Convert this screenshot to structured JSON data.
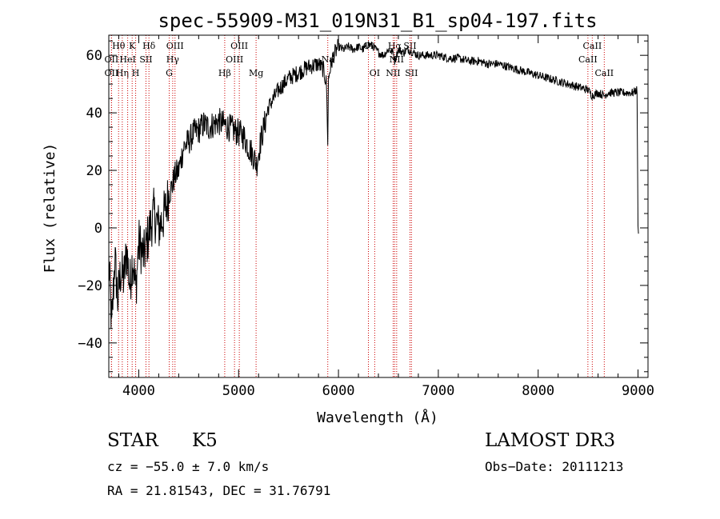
{
  "chart_data": {
    "type": "line",
    "title": "spec-55909-M31_019N31_B1_sp04-197.fits",
    "xlabel": "Wavelength (Å)",
    "ylabel": "Flux (relative)",
    "xlim": [
      3700,
      9100
    ],
    "ylim": [
      -52,
      67
    ],
    "xticks": [
      4000,
      5000,
      6000,
      7000,
      8000,
      9000
    ],
    "yticks": [
      -40,
      -20,
      0,
      20,
      40,
      60
    ],
    "series": [
      {
        "name": "spectrum",
        "x": [
          3700,
          3730,
          3760,
          3790,
          3820,
          3850,
          3880,
          3910,
          3940,
          3970,
          4000,
          4050,
          4100,
          4150,
          4200,
          4250,
          4280,
          4300,
          4330,
          4360,
          4400,
          4450,
          4500,
          4550,
          4600,
          4650,
          4700,
          4750,
          4800,
          4850,
          4900,
          4950,
          5000,
          5050,
          5100,
          5150,
          5180,
          5220,
          5300,
          5400,
          5500,
          5600,
          5700,
          5800,
          5850,
          5880,
          5893,
          5900,
          5920,
          5950,
          6000,
          6050,
          6100,
          6150,
          6200,
          6250,
          6300,
          6350,
          6400,
          6450,
          6500,
          6550,
          6563,
          6600,
          6650,
          6700,
          6750,
          6800,
          6900,
          7000,
          7100,
          7200,
          7300,
          7400,
          7500,
          7600,
          7700,
          7800,
          7900,
          8000,
          8100,
          8200,
          8300,
          8400,
          8500,
          8540,
          8600,
          8660,
          8700,
          8800,
          8900,
          8950,
          8990,
          9000,
          9005
        ],
        "values": [
          -12,
          -35,
          -10,
          -25,
          -15,
          -18,
          -8,
          -20,
          -10,
          -22,
          -5,
          -10,
          -2,
          5,
          0,
          4,
          8,
          12,
          14,
          18,
          20,
          28,
          30,
          33,
          34,
          36,
          35,
          36,
          37,
          36,
          35,
          34,
          33,
          32,
          28,
          25,
          22,
          30,
          42,
          48,
          52,
          54,
          56,
          57,
          55,
          50,
          30,
          52,
          56,
          60,
          63,
          62,
          63,
          62,
          63,
          62,
          64,
          63,
          61,
          60,
          62,
          61,
          58,
          62,
          61,
          62,
          61,
          60,
          60,
          60,
          59,
          59,
          58,
          58,
          57,
          57,
          56,
          55,
          54,
          53,
          52,
          51,
          50,
          49,
          48,
          46,
          47,
          46,
          47,
          47,
          47,
          47,
          48,
          0,
          -2
        ]
      }
    ],
    "lines": [
      {
        "label": "Hθ",
        "wave": 3798,
        "row": 0
      },
      {
        "label": "OII",
        "wave": 3727,
        "row": 1
      },
      {
        "label": "OII",
        "wave": 3727,
        "row": 2
      },
      {
        "label": "K",
        "wave": 3934,
        "row": 0
      },
      {
        "label": "H",
        "wave": 3969,
        "row": 2
      },
      {
        "label": "Hη",
        "wave": 3835,
        "row": 2
      },
      {
        "label": "HeI",
        "wave": 3889,
        "row": 1
      },
      {
        "label": "SII",
        "wave": 4072,
        "row": 1
      },
      {
        "label": "Hδ",
        "wave": 4102,
        "row": 0
      },
      {
        "label": "OIII",
        "wave": 4363,
        "row": 0
      },
      {
        "label": "Hγ",
        "wave": 4340,
        "row": 1
      },
      {
        "label": "G",
        "wave": 4305,
        "row": 2
      },
      {
        "label": "Hβ",
        "wave": 4861,
        "row": 2
      },
      {
        "label": "OIII",
        "wave": 5007,
        "row": 0
      },
      {
        "label": "OIII",
        "wave": 4959,
        "row": 1
      },
      {
        "label": "Mg",
        "wave": 5175,
        "row": 2
      },
      {
        "label": "Na",
        "wave": 5893,
        "row": 1
      },
      {
        "label": "OI",
        "wave": 6300,
        "row": 0
      },
      {
        "label": "OI",
        "wave": 6363,
        "row": 2
      },
      {
        "label": "Hα",
        "wave": 6563,
        "row": 0
      },
      {
        "label": "NII",
        "wave": 6548,
        "row": 2
      },
      {
        "label": "NII",
        "wave": 6583,
        "row": 1
      },
      {
        "label": "SII",
        "wave": 6716,
        "row": 0
      },
      {
        "label": "SII",
        "wave": 6731,
        "row": 2
      },
      {
        "label": "CaII",
        "wave": 8542,
        "row": 0
      },
      {
        "label": "CaII",
        "wave": 8498,
        "row": 1
      },
      {
        "label": "CaII",
        "wave": 8662,
        "row": 2
      }
    ]
  },
  "info": {
    "object_class": "STAR",
    "subclass": "K5",
    "survey": "LAMOST DR3",
    "cz": "cz = −55.0 ± 7.0 km/s",
    "obs_date": "Obs−Date: 20111213",
    "coords": "RA =  21.81543, DEC =  31.76791"
  },
  "colors": {
    "spectrum": "#000000",
    "emission_line": "#cc0000",
    "axis": "#000000"
  }
}
